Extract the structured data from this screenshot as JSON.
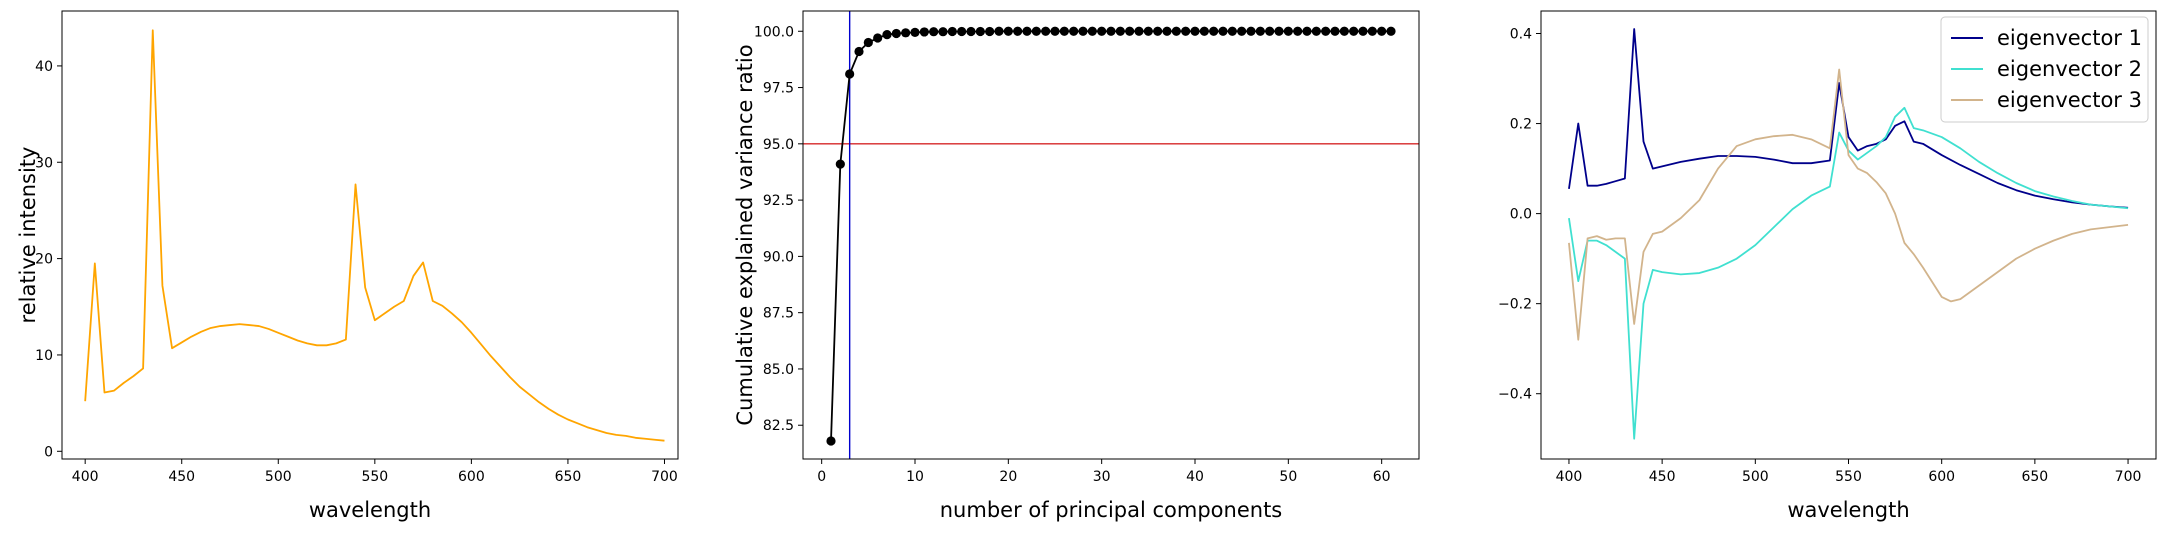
{
  "chart_data": [
    {
      "type": "line",
      "xlabel": "wavelength",
      "ylabel": "relative intensity",
      "xlim": [
        388,
        707
      ],
      "ylim": [
        -0.8,
        45.7
      ],
      "xticks": [
        400,
        450,
        500,
        550,
        600,
        650,
        700
      ],
      "yticks": [
        0,
        10,
        20,
        30,
        40
      ],
      "series": [
        {
          "color": "#ffa500",
          "x": [
            400,
            405,
            410,
            415,
            420,
            425,
            430,
            435,
            440,
            445,
            450,
            455,
            460,
            465,
            470,
            475,
            480,
            485,
            490,
            495,
            500,
            505,
            510,
            515,
            520,
            525,
            530,
            535,
            540,
            545,
            550,
            555,
            560,
            565,
            570,
            575,
            580,
            585,
            590,
            595,
            600,
            605,
            610,
            615,
            620,
            625,
            630,
            635,
            640,
            645,
            650,
            655,
            660,
            665,
            670,
            675,
            680,
            685,
            690,
            695,
            700
          ],
          "y": [
            5.2,
            19.5,
            6.1,
            6.3,
            7.1,
            7.8,
            8.6,
            43.7,
            17.2,
            10.7,
            11.3,
            11.9,
            12.4,
            12.8,
            13.0,
            13.1,
            13.2,
            13.1,
            13.0,
            12.7,
            12.3,
            11.9,
            11.5,
            11.2,
            11.0,
            11.0,
            11.2,
            11.6,
            27.7,
            17.0,
            13.6,
            14.3,
            15.0,
            15.6,
            18.2,
            19.6,
            15.6,
            15.1,
            14.3,
            13.4,
            12.3,
            11.1,
            9.9,
            8.8,
            7.7,
            6.7,
            5.9,
            5.1,
            4.4,
            3.8,
            3.3,
            2.9,
            2.5,
            2.2,
            1.9,
            1.7,
            1.6,
            1.4,
            1.3,
            1.2,
            1.1
          ]
        }
      ]
    },
    {
      "type": "line",
      "xlabel": "number of principal components",
      "ylabel": "Cumulative explained variance ratio",
      "xlim": [
        -2.0,
        64.0
      ],
      "ylim": [
        81.0,
        100.9
      ],
      "xticks": [
        0,
        10,
        20,
        30,
        40,
        50,
        60
      ],
      "yticks": [
        82.5,
        85.0,
        87.5,
        90.0,
        92.5,
        95.0,
        97.5,
        100.0
      ],
      "ytick_labels": [
        "82.5",
        "85.0",
        "87.5",
        "90.0",
        "92.5",
        "95.0",
        "97.5",
        "100.0"
      ],
      "hline": {
        "y": 95.0,
        "color": "#d62728"
      },
      "vline": {
        "x": 3,
        "color": "#0000cd"
      },
      "series": [
        {
          "color": "#000000",
          "marker": "circle",
          "x": [
            1,
            2,
            3,
            4,
            5,
            6,
            7,
            8,
            9,
            10,
            11,
            12,
            13,
            14,
            15,
            16,
            17,
            18,
            19,
            20,
            21,
            22,
            23,
            24,
            25,
            26,
            27,
            28,
            29,
            30,
            31,
            32,
            33,
            34,
            35,
            36,
            37,
            38,
            39,
            40,
            41,
            42,
            43,
            44,
            45,
            46,
            47,
            48,
            49,
            50,
            51,
            52,
            53,
            54,
            55,
            56,
            57,
            58,
            59,
            60,
            61
          ],
          "y": [
            81.8,
            94.1,
            98.1,
            99.1,
            99.5,
            99.7,
            99.85,
            99.9,
            99.93,
            99.95,
            99.97,
            99.98,
            99.98,
            99.99,
            99.99,
            99.99,
            99.99,
            99.99,
            100,
            100,
            100,
            100,
            100,
            100,
            100,
            100,
            100,
            100,
            100,
            100,
            100,
            100,
            100,
            100,
            100,
            100,
            100,
            100,
            100,
            100,
            100,
            100,
            100,
            100,
            100,
            100,
            100,
            100,
            100,
            100,
            100,
            100,
            100,
            100,
            100,
            100,
            100,
            100,
            100,
            100,
            100
          ]
        }
      ]
    },
    {
      "type": "line",
      "xlabel": "wavelength",
      "ylabel": "",
      "xlim": [
        385,
        715
      ],
      "ylim": [
        -0.545,
        0.45
      ],
      "xticks": [
        400,
        450,
        500,
        550,
        600,
        650,
        700
      ],
      "yticks": [
        -0.4,
        -0.2,
        0.0,
        0.2,
        0.4
      ],
      "ytick_labels": [
        "−0.4",
        "−0.2",
        "0.0",
        "0.2",
        "0.4"
      ],
      "legend": "top-right",
      "series": [
        {
          "name": "eigenvector 1",
          "color": "#00008b",
          "x": [
            400,
            405,
            410,
            415,
            420,
            425,
            430,
            435,
            440,
            445,
            450,
            460,
            470,
            480,
            490,
            500,
            510,
            520,
            530,
            540,
            545,
            550,
            555,
            560,
            565,
            570,
            575,
            580,
            585,
            590,
            600,
            610,
            620,
            630,
            640,
            650,
            660,
            670,
            680,
            690,
            700
          ],
          "y": [
            0.055,
            0.2,
            0.062,
            0.062,
            0.066,
            0.072,
            0.078,
            0.41,
            0.16,
            0.1,
            0.105,
            0.115,
            0.122,
            0.128,
            0.128,
            0.126,
            0.12,
            0.112,
            0.112,
            0.118,
            0.29,
            0.17,
            0.14,
            0.15,
            0.155,
            0.165,
            0.195,
            0.205,
            0.16,
            0.155,
            0.13,
            0.108,
            0.088,
            0.068,
            0.052,
            0.04,
            0.032,
            0.025,
            0.02,
            0.016,
            0.013
          ]
        },
        {
          "name": "eigenvector 2",
          "color": "#40e0d0",
          "x": [
            400,
            405,
            410,
            415,
            420,
            425,
            430,
            435,
            440,
            445,
            450,
            460,
            470,
            480,
            490,
            500,
            510,
            520,
            530,
            540,
            545,
            550,
            555,
            560,
            565,
            570,
            575,
            580,
            585,
            590,
            600,
            610,
            620,
            630,
            640,
            650,
            660,
            670,
            680,
            690,
            700
          ],
          "y": [
            -0.01,
            -0.15,
            -0.06,
            -0.06,
            -0.07,
            -0.085,
            -0.1,
            -0.5,
            -0.2,
            -0.125,
            -0.13,
            -0.135,
            -0.132,
            -0.12,
            -0.1,
            -0.07,
            -0.03,
            0.01,
            0.04,
            0.06,
            0.18,
            0.14,
            0.12,
            0.135,
            0.15,
            0.17,
            0.215,
            0.235,
            0.19,
            0.185,
            0.17,
            0.145,
            0.115,
            0.09,
            0.068,
            0.05,
            0.038,
            0.028,
            0.02,
            0.016,
            0.012
          ]
        },
        {
          "name": "eigenvector 3",
          "color": "#d2b48c",
          "x": [
            400,
            405,
            410,
            415,
            420,
            425,
            430,
            435,
            440,
            445,
            450,
            460,
            470,
            480,
            490,
            500,
            510,
            520,
            530,
            540,
            545,
            550,
            555,
            560,
            565,
            570,
            575,
            580,
            585,
            590,
            600,
            605,
            610,
            620,
            630,
            640,
            650,
            660,
            670,
            680,
            690,
            700
          ],
          "y": [
            -0.065,
            -0.28,
            -0.055,
            -0.05,
            -0.058,
            -0.055,
            -0.055,
            -0.245,
            -0.085,
            -0.045,
            -0.04,
            -0.01,
            0.03,
            0.1,
            0.15,
            0.165,
            0.172,
            0.175,
            0.165,
            0.145,
            0.32,
            0.13,
            0.1,
            0.09,
            0.07,
            0.045,
            0.0,
            -0.065,
            -0.09,
            -0.12,
            -0.185,
            -0.195,
            -0.19,
            -0.16,
            -0.13,
            -0.1,
            -0.078,
            -0.06,
            -0.045,
            -0.035,
            -0.03,
            -0.025
          ]
        }
      ]
    }
  ]
}
